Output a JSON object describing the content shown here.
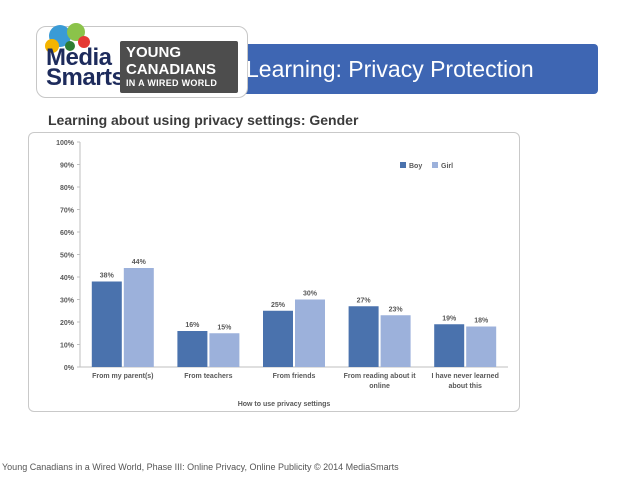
{
  "header": {
    "title": "Learning: Privacy Protection",
    "logo": {
      "line1": "Media",
      "line2": "Smarts",
      "sub1": "YOUNG",
      "sub2": "CANADIANS",
      "sub3": "IN A WIRED WORLD"
    }
  },
  "subtitle": "Learning about using privacy settings: Gender",
  "footer": "Young Canadians in a Wired World, Phase III: Online Privacy, Online Publicity  © 2014 MediaSmarts",
  "colors": {
    "boy": "#4a72ad",
    "girl": "#9cb1db",
    "header": "#3e66b3"
  },
  "chart_data": {
    "type": "bar",
    "title": "",
    "xlabel": "How to use privacy settings",
    "ylabel": "",
    "ylim": [
      0,
      100
    ],
    "yticks": [
      "0%",
      "10%",
      "20%",
      "30%",
      "40%",
      "50%",
      "60%",
      "70%",
      "80%",
      "90%",
      "100%"
    ],
    "grid": false,
    "legend": "top-right",
    "categories": [
      [
        "From my parent(s)"
      ],
      [
        "From teachers"
      ],
      [
        "From friends"
      ],
      [
        "From reading about it",
        "online"
      ],
      [
        "I have never learned",
        "about this"
      ]
    ],
    "series": [
      {
        "name": "Boy",
        "values": [
          38,
          16,
          25,
          27,
          19
        ],
        "labels": [
          "38%",
          "16%",
          "25%",
          "27%",
          "19%"
        ]
      },
      {
        "name": "Girl",
        "values": [
          44,
          15,
          30,
          23,
          18
        ],
        "labels": [
          "44%",
          "15%",
          "30%",
          "23%",
          "18%"
        ]
      }
    ]
  }
}
